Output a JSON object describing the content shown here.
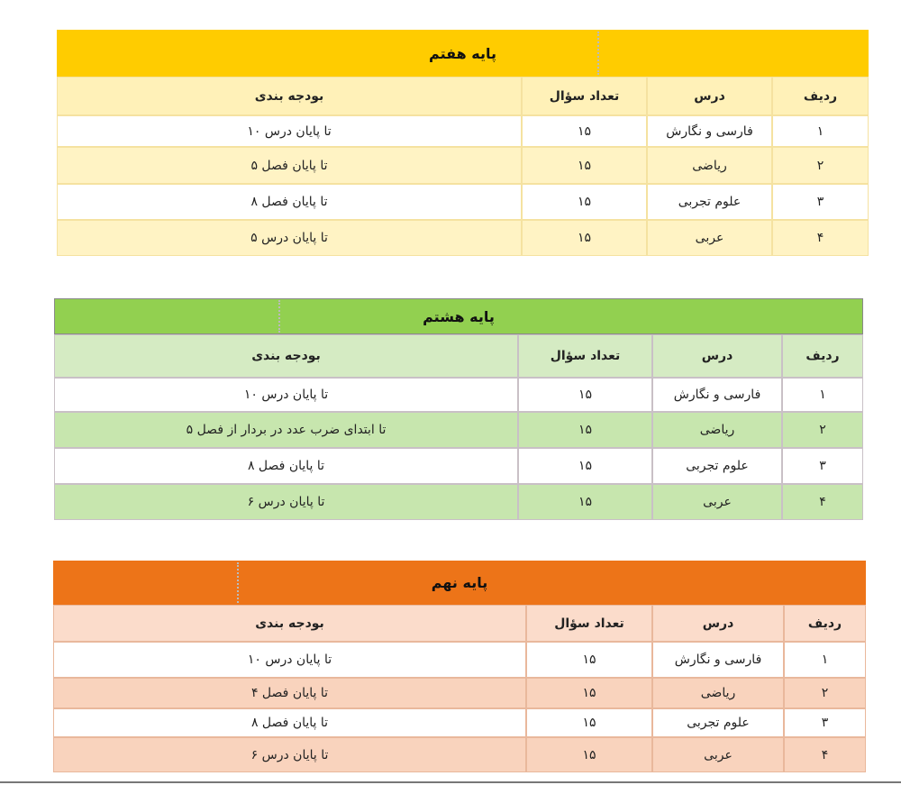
{
  "tables": [
    {
      "title": "پایه هفتم",
      "headers": [
        "ردیف",
        "درس",
        "تعداد سؤال",
        "بودجه بندی"
      ],
      "rows": [
        [
          "۱",
          "فارسی و نگارش",
          "۱۵",
          "تا پایان درس ۱۰"
        ],
        [
          "۲",
          "ریاضی",
          "۱۵",
          "تا پایان فصل ۵"
        ],
        [
          "۳",
          "علوم تجربی",
          "۱۵",
          "تا پایان فصل ۸"
        ],
        [
          "۴",
          "عربی",
          "۱۵",
          "تا پایان درس ۵"
        ]
      ]
    },
    {
      "title": "پایه هشتم",
      "headers": [
        "ردیف",
        "درس",
        "تعداد سؤال",
        "بودجه بندی"
      ],
      "rows": [
        [
          "۱",
          "فارسی و نگارش",
          "۱۵",
          "تا پایان درس ۱۰"
        ],
        [
          "۲",
          "ریاضی",
          "۱۵",
          "تا ابتدای ضرب عدد در بردار از فصل ۵"
        ],
        [
          "۳",
          "علوم تجربی",
          "۱۵",
          "تا پایان فصل ۸"
        ],
        [
          "۴",
          "عربی",
          "۱۵",
          "تا پایان درس ۶"
        ]
      ]
    },
    {
      "title": "پایه نهم",
      "headers": [
        "ردیف",
        "درس",
        "تعداد سؤال",
        "بودجه بندی"
      ],
      "rows": [
        [
          "۱",
          "فارسی و نگارش",
          "۱۵",
          "تا پایان درس ۱۰"
        ],
        [
          "۲",
          "ریاضی",
          "۱۵",
          "تا پایان فصل ۴"
        ],
        [
          "۳",
          "علوم تجربی",
          "۱۵",
          "تا پایان فصل ۸"
        ],
        [
          "۴",
          "عربی",
          "۱۵",
          "تا پایان درس ۶"
        ]
      ]
    }
  ]
}
